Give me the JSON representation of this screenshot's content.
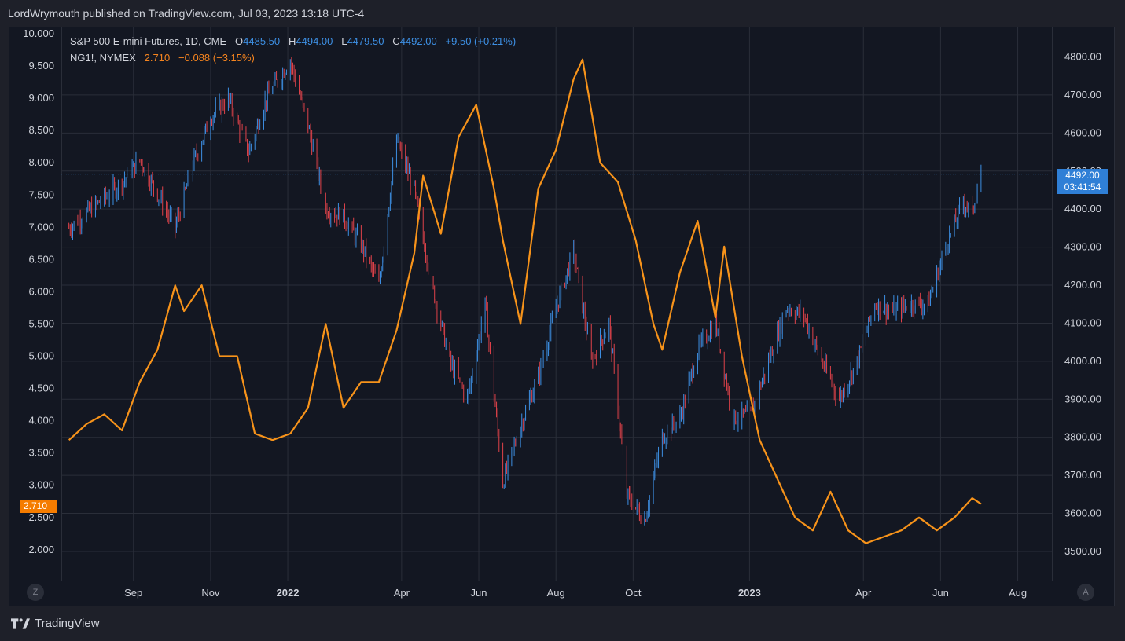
{
  "header": {
    "publisher_line": "LordWrymouth published on TradingView.com, Jul 03, 2023 13:18 UTC-4"
  },
  "legend": {
    "series1": {
      "name": "S&P 500 E-mini Futures, 1D, CME",
      "o_label": "O",
      "o": "4485.50",
      "h_label": "H",
      "h": "4494.00",
      "l_label": "L",
      "l": "4479.50",
      "c_label": "C",
      "c": "4492.00",
      "change": "+9.50 (+0.21%)"
    },
    "series2": {
      "name": "NG1!, NYMEX",
      "last": "2.710",
      "change": "−0.088 (−3.15%)"
    }
  },
  "badges": {
    "es_price": "4492.00",
    "es_countdown": "03:41:54",
    "ng_price": "2.710"
  },
  "buttons": {
    "left_scale": "Z",
    "right_scale": "A"
  },
  "footer": {
    "brand": "TradingView"
  },
  "colors": {
    "up": "#3d8fe3",
    "down": "#e0424a",
    "ng_line": "#f7931a",
    "grid": "#2a2e39",
    "price_line": "#3d8fe3"
  },
  "chart_data": {
    "type": "line",
    "x_ticks": [
      {
        "label": "Sep",
        "bold": false
      },
      {
        "label": "Nov",
        "bold": false
      },
      {
        "label": "2022",
        "bold": true
      },
      {
        "label": "Apr",
        "bold": false
      },
      {
        "label": "Jun",
        "bold": false
      },
      {
        "label": "Aug",
        "bold": false
      },
      {
        "label": "Oct",
        "bold": false
      },
      {
        "label": "2023",
        "bold": true
      },
      {
        "label": "Apr",
        "bold": false
      },
      {
        "label": "Jun",
        "bold": false
      },
      {
        "label": "Aug",
        "bold": false
      }
    ],
    "x_tick_dates": [
      "2021-09-01",
      "2021-11-01",
      "2022-01-01",
      "2022-04-01",
      "2022-06-01",
      "2022-08-01",
      "2022-10-01",
      "2023-01-01",
      "2023-04-01",
      "2023-06-01",
      "2023-08-01"
    ],
    "left_axis": {
      "series": "NG1!",
      "range": [
        1.6,
        10.0
      ],
      "ticks": [
        "10.000",
        "9.500",
        "9.000",
        "8.500",
        "8.000",
        "7.500",
        "7.000",
        "6.500",
        "6.000",
        "5.500",
        "5.000",
        "4.500",
        "4.000",
        "3.500",
        "3.000",
        "2.500",
        "2.000"
      ]
    },
    "right_axis": {
      "series": "ES",
      "ticks": [
        "4800.00",
        "4700.00",
        "4600.00",
        "4500.00",
        "4400.00",
        "4300.00",
        "4200.00",
        "4100.00",
        "4000.00",
        "3900.00",
        "3800.00",
        "3700.00",
        "3600.00",
        "3500.00"
      ]
    },
    "series": [
      {
        "name": "NG1!, NYMEX",
        "axis": "left",
        "points": [
          [
            "2021-07-12",
            3.7
          ],
          [
            "2021-07-26",
            3.95
          ],
          [
            "2021-08-09",
            4.1
          ],
          [
            "2021-08-23",
            3.85
          ],
          [
            "2021-09-06",
            4.6
          ],
          [
            "2021-09-20",
            5.1
          ],
          [
            "2021-10-04",
            6.1
          ],
          [
            "2021-10-11",
            5.7
          ],
          [
            "2021-10-25",
            6.1
          ],
          [
            "2021-11-08",
            5.0
          ],
          [
            "2021-11-22",
            5.0
          ],
          [
            "2021-12-06",
            3.8
          ],
          [
            "2021-12-20",
            3.7
          ],
          [
            "2022-01-03",
            3.8
          ],
          [
            "2022-01-17",
            4.2
          ],
          [
            "2022-01-31",
            5.5
          ],
          [
            "2022-02-14",
            4.2
          ],
          [
            "2022-02-28",
            4.6
          ],
          [
            "2022-03-14",
            4.6
          ],
          [
            "2022-03-28",
            5.4
          ],
          [
            "2022-04-11",
            6.6
          ],
          [
            "2022-04-18",
            7.8
          ],
          [
            "2022-05-02",
            6.9
          ],
          [
            "2022-05-16",
            8.4
          ],
          [
            "2022-05-30",
            8.9
          ],
          [
            "2022-06-13",
            7.6
          ],
          [
            "2022-06-20",
            6.8
          ],
          [
            "2022-07-04",
            5.5
          ],
          [
            "2022-07-18",
            7.6
          ],
          [
            "2022-08-01",
            8.2
          ],
          [
            "2022-08-15",
            9.3
          ],
          [
            "2022-08-22",
            9.6
          ],
          [
            "2022-09-05",
            8.0
          ],
          [
            "2022-09-19",
            7.7
          ],
          [
            "2022-10-03",
            6.8
          ],
          [
            "2022-10-17",
            5.5
          ],
          [
            "2022-10-24",
            5.1
          ],
          [
            "2022-11-07",
            6.3
          ],
          [
            "2022-11-21",
            7.1
          ],
          [
            "2022-12-05",
            5.6
          ],
          [
            "2022-12-12",
            6.7
          ],
          [
            "2022-12-26",
            5.0
          ],
          [
            "2023-01-09",
            3.7
          ],
          [
            "2023-01-23",
            3.1
          ],
          [
            "2023-02-06",
            2.5
          ],
          [
            "2023-02-20",
            2.3
          ],
          [
            "2023-03-06",
            2.9
          ],
          [
            "2023-03-20",
            2.3
          ],
          [
            "2023-04-03",
            2.1
          ],
          [
            "2023-04-17",
            2.2
          ],
          [
            "2023-05-01",
            2.3
          ],
          [
            "2023-05-15",
            2.5
          ],
          [
            "2023-05-29",
            2.3
          ],
          [
            "2023-06-12",
            2.5
          ],
          [
            "2023-06-26",
            2.8
          ],
          [
            "2023-07-03",
            2.71
          ]
        ]
      },
      {
        "name": "S&P 500 E-mini Futures, 1D, CME",
        "axis": "right",
        "points": [
          [
            "2021-07-12",
            4350
          ],
          [
            "2021-07-26",
            4390
          ],
          [
            "2021-08-09",
            4430
          ],
          [
            "2021-08-23",
            4470
          ],
          [
            "2021-09-06",
            4530
          ],
          [
            "2021-09-20",
            4440
          ],
          [
            "2021-10-04",
            4350
          ],
          [
            "2021-10-18",
            4520
          ],
          [
            "2021-11-01",
            4640
          ],
          [
            "2021-11-15",
            4690
          ],
          [
            "2021-12-01",
            4550
          ],
          [
            "2021-12-15",
            4690
          ],
          [
            "2022-01-03",
            4790
          ],
          [
            "2022-01-17",
            4620
          ],
          [
            "2022-01-31",
            4400
          ],
          [
            "2022-02-14",
            4380
          ],
          [
            "2022-03-01",
            4300
          ],
          [
            "2022-03-14",
            4200
          ],
          [
            "2022-03-28",
            4580
          ],
          [
            "2022-04-11",
            4450
          ],
          [
            "2022-04-25",
            4200
          ],
          [
            "2022-05-09",
            4000
          ],
          [
            "2022-05-23",
            3900
          ],
          [
            "2022-06-06",
            4150
          ],
          [
            "2022-06-20",
            3680
          ],
          [
            "2022-07-04",
            3830
          ],
          [
            "2022-07-18",
            3960
          ],
          [
            "2022-08-01",
            4140
          ],
          [
            "2022-08-15",
            4290
          ],
          [
            "2022-08-29",
            4000
          ],
          [
            "2022-09-12",
            4100
          ],
          [
            "2022-09-26",
            3650
          ],
          [
            "2022-10-10",
            3580
          ],
          [
            "2022-10-24",
            3800
          ],
          [
            "2022-11-07",
            3850
          ],
          [
            "2022-11-21",
            4030
          ],
          [
            "2022-12-05",
            4100
          ],
          [
            "2022-12-19",
            3850
          ],
          [
            "2023-01-02",
            3860
          ],
          [
            "2023-01-16",
            4000
          ],
          [
            "2023-01-30",
            4140
          ],
          [
            "2023-02-13",
            4120
          ],
          [
            "2023-02-27",
            4000
          ],
          [
            "2023-03-13",
            3900
          ],
          [
            "2023-03-27",
            4000
          ],
          [
            "2023-04-10",
            4150
          ],
          [
            "2023-04-24",
            4130
          ],
          [
            "2023-05-08",
            4150
          ],
          [
            "2023-05-22",
            4150
          ],
          [
            "2023-06-05",
            4300
          ],
          [
            "2023-06-19",
            4420
          ],
          [
            "2023-06-26",
            4390
          ],
          [
            "2023-07-03",
            4492
          ]
        ]
      }
    ]
  }
}
